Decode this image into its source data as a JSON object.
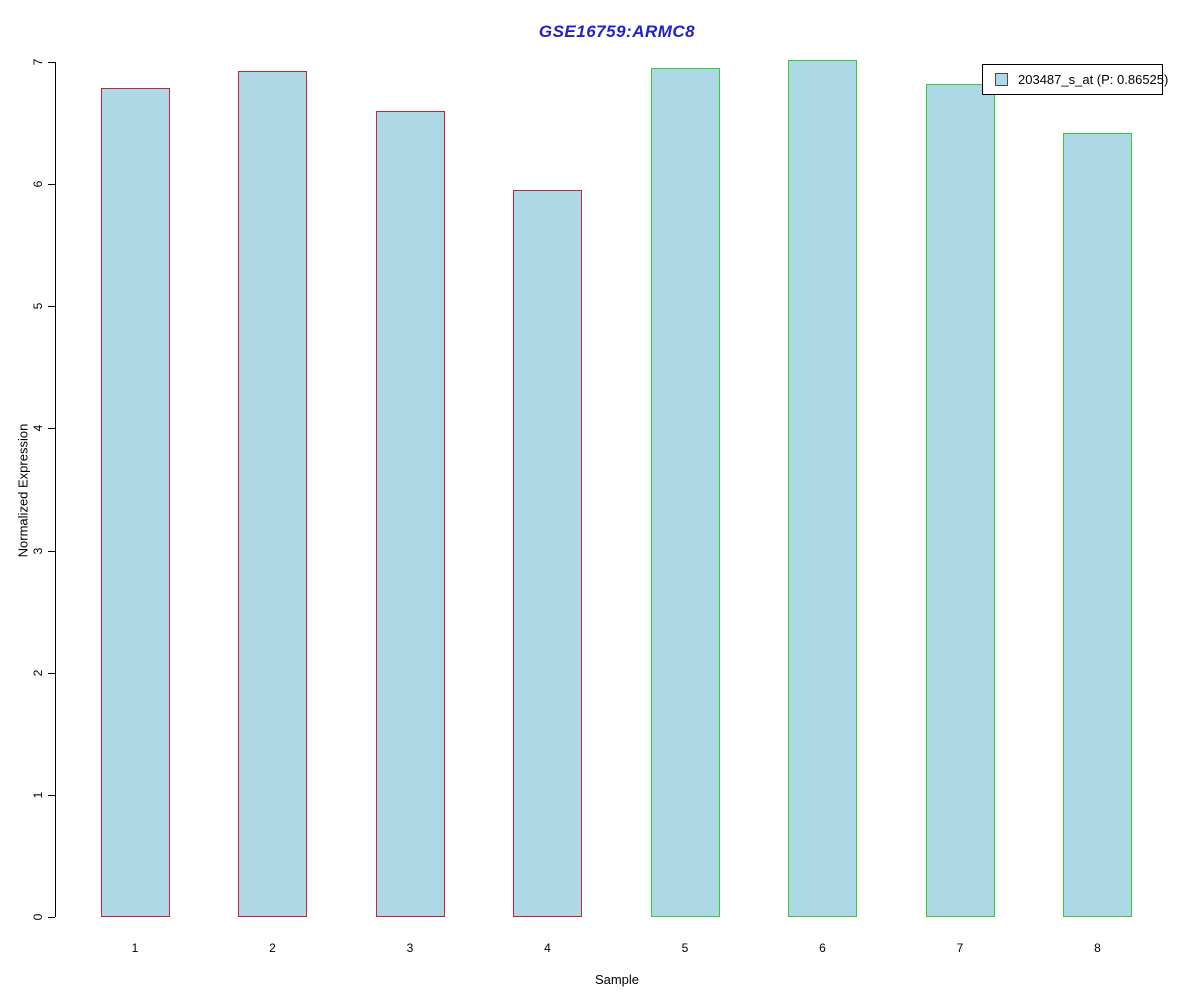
{
  "title": "GSE16759:ARMC8",
  "colors": {
    "title": "#2121cc",
    "bar_fill": "#add8e6",
    "group1_border": "#cc2233",
    "group2_border": "#33cc33",
    "axis": "#000000",
    "legend_border": "#000000",
    "legend_swatch_border": "#4a4a4a"
  },
  "legend": {
    "label": "203487_s_at (P: 0.86525)"
  },
  "axes": {
    "xlabel": "Sample",
    "ylabel": "Normalized Expression"
  },
  "chart_data": {
    "type": "bar",
    "title": "GSE16759:ARMC8",
    "xlabel": "Sample",
    "ylabel": "Normalized Expression",
    "categories": [
      "1",
      "2",
      "3",
      "4",
      "5",
      "6",
      "7",
      "8"
    ],
    "series": [
      {
        "name": "203487_s_at (P: 0.86525)",
        "values": [
          6.79,
          6.93,
          6.6,
          5.95,
          6.95,
          7.02,
          6.82,
          6.42
        ]
      }
    ],
    "bar_fill": "#add8e6",
    "bar_border_colors": [
      "#cc2233",
      "#cc2233",
      "#cc2233",
      "#cc2233",
      "#33cc33",
      "#33cc33",
      "#33cc33",
      "#33cc33"
    ],
    "group_note": "samples 1-4 red outline, samples 5-8 green outline",
    "ylim": [
      0,
      7
    ],
    "yticks": [
      0,
      1,
      2,
      3,
      4,
      5,
      6,
      7
    ],
    "grid": false,
    "legend": [
      "203487_s_at (P: 0.86525)"
    ],
    "legend_position": "top-right"
  }
}
